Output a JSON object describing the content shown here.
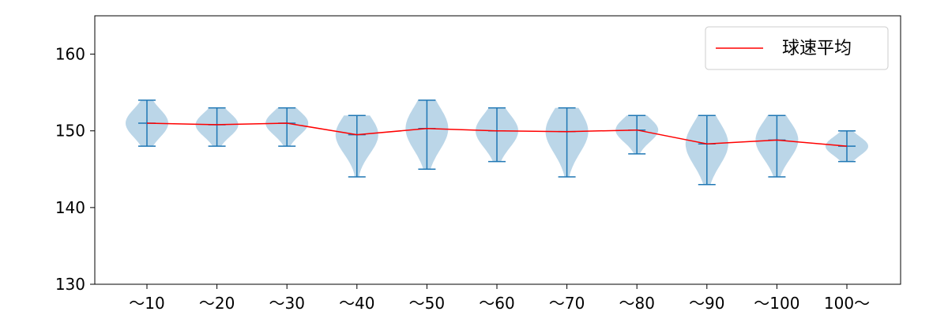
{
  "chart_data": {
    "type": "violin",
    "title": "",
    "xlabel": "",
    "ylabel": "",
    "ylim": [
      130,
      165
    ],
    "yticks": [
      130,
      140,
      150,
      160
    ],
    "categories": [
      "～10",
      "～20",
      "～30",
      "～40",
      "～50",
      "～60",
      "～70",
      "～80",
      "～90",
      "～100",
      "100～"
    ],
    "mins": [
      148,
      148,
      148,
      144,
      145,
      146,
      144,
      147,
      143,
      144,
      146
    ],
    "maxs": [
      154,
      153,
      153,
      152,
      154,
      153,
      153,
      152,
      152,
      152,
      150
    ],
    "means": [
      151.0,
      150.8,
      151.0,
      149.5,
      150.3,
      150.0,
      149.9,
      150.1,
      148.3,
      148.8,
      148.0
    ],
    "legend": {
      "label": "球速平均",
      "placement": "top-right"
    },
    "grid": false,
    "colors": {
      "violin_fill": "#1f77b4",
      "violin_lines": "#1f77b4",
      "mean_line": "#ff0000"
    }
  }
}
